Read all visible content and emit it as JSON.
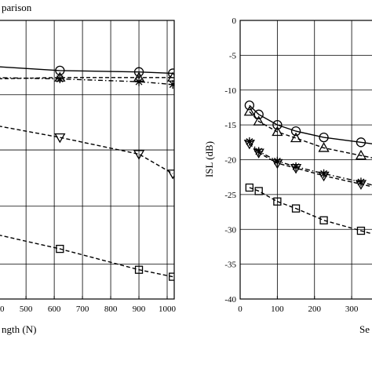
{
  "chart_data": [
    {
      "type": "line",
      "title": "parison",
      "xlabel": "ngth (N)",
      "ylabel": "",
      "xlim": [
        380,
        1025
      ],
      "ylim": [
        0,
        1
      ],
      "x_ticks": [
        "400",
        "500",
        "600",
        "700",
        "800",
        "900",
        "1000"
      ],
      "grid": true,
      "series": [
        {
          "marker": "circle",
          "dash": "solid",
          "x": [
            380,
            620,
            900,
            1020
          ],
          "y": [
            0.835,
            0.82,
            0.815,
            0.81
          ]
        },
        {
          "marker": "triangle-up",
          "dash": "dash",
          "x": [
            380,
            620,
            900,
            1020
          ],
          "y": [
            0.79,
            0.795,
            0.795,
            0.795
          ]
        },
        {
          "marker": "asterisk",
          "dash": "dashdot",
          "x": [
            380,
            620,
            900,
            1020
          ],
          "y": [
            0.795,
            0.79,
            0.78,
            0.77
          ]
        },
        {
          "marker": "triangle-down",
          "dash": "dash",
          "x": [
            380,
            620,
            900,
            1020
          ],
          "y": [
            0.625,
            0.58,
            0.52,
            0.45
          ]
        },
        {
          "marker": "square",
          "dash": "dash",
          "x": [
            380,
            620,
            900,
            1020
          ],
          "y": [
            0.235,
            0.18,
            0.105,
            0.08
          ]
        }
      ]
    },
    {
      "type": "line",
      "title": "",
      "xlabel": "Se",
      "ylabel": "ISL (dB)",
      "xlim": [
        0,
        380
      ],
      "ylim": [
        -40,
        0
      ],
      "x_ticks": [
        "0",
        "100",
        "200",
        "300"
      ],
      "y_ticks": [
        "0",
        "-5",
        "-10",
        "-15",
        "-20",
        "-25",
        "-30",
        "-35",
        "-40"
      ],
      "grid": true,
      "series": [
        {
          "marker": "circle",
          "dash": "solid",
          "x": [
            25,
            50,
            100,
            150,
            225,
            325,
            380
          ],
          "y": [
            -12.2,
            -13.5,
            -15.0,
            -15.9,
            -16.8,
            -17.5,
            -17.9
          ]
        },
        {
          "marker": "triangle-up",
          "dash": "dash",
          "x": [
            25,
            50,
            100,
            150,
            225,
            325,
            380
          ],
          "y": [
            -13.1,
            -14.5,
            -16.0,
            -16.9,
            -18.3,
            -19.4,
            -20.0
          ]
        },
        {
          "marker": "asterisk",
          "dash": "dashdot",
          "x": [
            25,
            50,
            100,
            150,
            225,
            325,
            380
          ],
          "y": [
            -17.4,
            -18.8,
            -20.2,
            -21.0,
            -22.0,
            -23.2,
            -24.0
          ]
        },
        {
          "marker": "triangle-down",
          "dash": "dash",
          "x": [
            25,
            50,
            100,
            150,
            225,
            325,
            380
          ],
          "y": [
            -17.7,
            -19.0,
            -20.5,
            -21.2,
            -22.3,
            -23.5,
            -24.2
          ]
        },
        {
          "marker": "square",
          "dash": "dash",
          "x": [
            25,
            50,
            100,
            150,
            225,
            325,
            380
          ],
          "y": [
            -24.0,
            -24.5,
            -26.0,
            -27.0,
            -28.7,
            -30.2,
            -31.0
          ]
        }
      ]
    }
  ]
}
